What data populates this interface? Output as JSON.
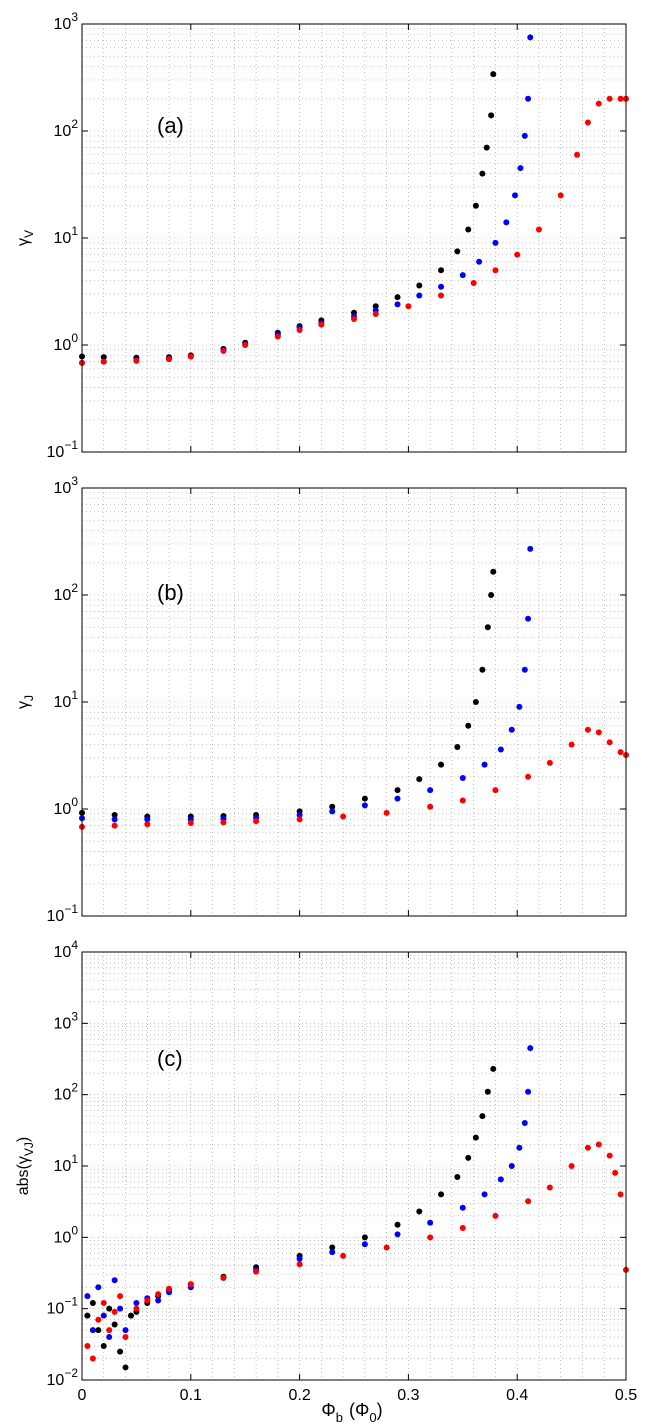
{
  "figure": {
    "xlabel_main": "Φ",
    "xlabel_sub": "b",
    "xlabel_paren": "(Φ",
    "xlabel_paren_sub": "0",
    "xlabel_close": ")"
  },
  "chart_data": [
    {
      "type": "scatter",
      "panel_label": "(a)",
      "ylabel": "γ",
      "ylabel_sub": "V",
      "y_scale": "log",
      "xlim": [
        0,
        0.5
      ],
      "ylim": [
        0.1,
        1000
      ],
      "x_ticks": [
        "0",
        "0.1",
        "0.2",
        "0.3",
        "0.4",
        "0.5"
      ],
      "x_ticklabels_visible": false,
      "y_ticks": [
        {
          "base": "10",
          "exp": "−1"
        },
        {
          "base": "10",
          "exp": "0"
        },
        {
          "base": "10",
          "exp": "1"
        },
        {
          "base": "10",
          "exp": "2"
        },
        {
          "base": "10",
          "exp": "3"
        }
      ],
      "grid": true,
      "series": [
        {
          "color": "#000000",
          "points": [
            [
              0,
              0.78
            ],
            [
              0.02,
              0.77
            ],
            [
              0.05,
              0.76
            ],
            [
              0.08,
              0.77
            ],
            [
              0.1,
              0.8
            ],
            [
              0.13,
              0.92
            ],
            [
              0.15,
              1.05
            ],
            [
              0.18,
              1.3
            ],
            [
              0.2,
              1.5
            ],
            [
              0.22,
              1.7
            ],
            [
              0.25,
              2.0
            ],
            [
              0.27,
              2.3
            ],
            [
              0.29,
              2.8
            ],
            [
              0.31,
              3.6
            ],
            [
              0.33,
              5.0
            ],
            [
              0.345,
              7.5
            ],
            [
              0.355,
              12
            ],
            [
              0.362,
              20
            ],
            [
              0.368,
              40
            ],
            [
              0.372,
              70
            ],
            [
              0.376,
              140
            ],
            [
              0.378,
              340
            ]
          ]
        },
        {
          "color": "#0000ff",
          "points": [
            [
              0,
              0.68
            ],
            [
              0.02,
              0.7
            ],
            [
              0.05,
              0.72
            ],
            [
              0.08,
              0.74
            ],
            [
              0.1,
              0.78
            ],
            [
              0.13,
              0.9
            ],
            [
              0.15,
              1.02
            ],
            [
              0.18,
              1.25
            ],
            [
              0.2,
              1.45
            ],
            [
              0.22,
              1.6
            ],
            [
              0.25,
              1.85
            ],
            [
              0.27,
              2.1
            ],
            [
              0.29,
              2.4
            ],
            [
              0.31,
              2.9
            ],
            [
              0.33,
              3.5
            ],
            [
              0.35,
              4.5
            ],
            [
              0.365,
              6
            ],
            [
              0.38,
              9
            ],
            [
              0.39,
              14
            ],
            [
              0.398,
              25
            ],
            [
              0.403,
              45
            ],
            [
              0.407,
              90
            ],
            [
              0.41,
              200
            ],
            [
              0.412,
              750
            ]
          ]
        },
        {
          "color": "#ff0000",
          "points": [
            [
              0,
              0.68
            ],
            [
              0.02,
              0.7
            ],
            [
              0.05,
              0.71
            ],
            [
              0.08,
              0.74
            ],
            [
              0.1,
              0.78
            ],
            [
              0.13,
              0.88
            ],
            [
              0.15,
              1.0
            ],
            [
              0.18,
              1.2
            ],
            [
              0.2,
              1.38
            ],
            [
              0.22,
              1.55
            ],
            [
              0.25,
              1.75
            ],
            [
              0.27,
              1.95
            ],
            [
              0.3,
              2.3
            ],
            [
              0.33,
              2.9
            ],
            [
              0.36,
              3.8
            ],
            [
              0.38,
              5.0
            ],
            [
              0.4,
              7.0
            ],
            [
              0.42,
              12
            ],
            [
              0.44,
              25
            ],
            [
              0.455,
              60
            ],
            [
              0.465,
              120
            ],
            [
              0.475,
              180
            ],
            [
              0.485,
              200
            ],
            [
              0.495,
              200
            ],
            [
              0.5,
              200
            ]
          ]
        }
      ]
    },
    {
      "type": "scatter",
      "panel_label": "(b)",
      "ylabel": "γ",
      "ylabel_sub": "J",
      "y_scale": "log",
      "xlim": [
        0,
        0.5
      ],
      "ylim": [
        0.1,
        1000
      ],
      "x_ticks": [
        "0",
        "0.1",
        "0.2",
        "0.3",
        "0.4",
        "0.5"
      ],
      "x_ticklabels_visible": false,
      "y_ticks": [
        {
          "base": "10",
          "exp": "−1"
        },
        {
          "base": "10",
          "exp": "0"
        },
        {
          "base": "10",
          "exp": "1"
        },
        {
          "base": "10",
          "exp": "2"
        },
        {
          "base": "10",
          "exp": "3"
        }
      ],
      "grid": true,
      "series": [
        {
          "color": "#000000",
          "points": [
            [
              0,
              0.92
            ],
            [
              0.03,
              0.88
            ],
            [
              0.06,
              0.85
            ],
            [
              0.1,
              0.85
            ],
            [
              0.13,
              0.86
            ],
            [
              0.16,
              0.88
            ],
            [
              0.2,
              0.95
            ],
            [
              0.23,
              1.05
            ],
            [
              0.26,
              1.25
            ],
            [
              0.29,
              1.5
            ],
            [
              0.31,
              1.9
            ],
            [
              0.33,
              2.6
            ],
            [
              0.345,
              3.8
            ],
            [
              0.355,
              6
            ],
            [
              0.362,
              10
            ],
            [
              0.368,
              20
            ],
            [
              0.373,
              50
            ],
            [
              0.376,
              100
            ],
            [
              0.378,
              165
            ]
          ]
        },
        {
          "color": "#0000ff",
          "points": [
            [
              0,
              0.82
            ],
            [
              0.03,
              0.8
            ],
            [
              0.06,
              0.8
            ],
            [
              0.1,
              0.8
            ],
            [
              0.13,
              0.81
            ],
            [
              0.16,
              0.83
            ],
            [
              0.2,
              0.88
            ],
            [
              0.23,
              0.95
            ],
            [
              0.26,
              1.08
            ],
            [
              0.29,
              1.25
            ],
            [
              0.32,
              1.5
            ],
            [
              0.35,
              1.95
            ],
            [
              0.37,
              2.6
            ],
            [
              0.385,
              3.6
            ],
            [
              0.395,
              5.5
            ],
            [
              0.402,
              9
            ],
            [
              0.407,
              20
            ],
            [
              0.41,
              60
            ],
            [
              0.412,
              270
            ]
          ]
        },
        {
          "color": "#ff0000",
          "points": [
            [
              0,
              0.68
            ],
            [
              0.03,
              0.7
            ],
            [
              0.06,
              0.72
            ],
            [
              0.1,
              0.74
            ],
            [
              0.13,
              0.75
            ],
            [
              0.16,
              0.77
            ],
            [
              0.2,
              0.8
            ],
            [
              0.24,
              0.85
            ],
            [
              0.28,
              0.92
            ],
            [
              0.32,
              1.05
            ],
            [
              0.35,
              1.2
            ],
            [
              0.38,
              1.5
            ],
            [
              0.41,
              2.0
            ],
            [
              0.43,
              2.7
            ],
            [
              0.45,
              4.0
            ],
            [
              0.465,
              5.5
            ],
            [
              0.475,
              5.2
            ],
            [
              0.485,
              4.2
            ],
            [
              0.495,
              3.4
            ],
            [
              0.5,
              3.2
            ]
          ]
        }
      ]
    },
    {
      "type": "scatter",
      "panel_label": "(c)",
      "ylabel": "abs(γ",
      "ylabel_sub": "VJ",
      "ylabel_close": ")",
      "y_scale": "log",
      "xlim": [
        0,
        0.5
      ],
      "ylim": [
        0.01,
        10000
      ],
      "x_ticks": [
        "0",
        "0.1",
        "0.2",
        "0.3",
        "0.4",
        "0.5"
      ],
      "x_ticklabels_visible": true,
      "y_ticks": [
        {
          "base": "10",
          "exp": "−2"
        },
        {
          "base": "10",
          "exp": "−1"
        },
        {
          "base": "10",
          "exp": "0"
        },
        {
          "base": "10",
          "exp": "1"
        },
        {
          "base": "10",
          "exp": "2"
        },
        {
          "base": "10",
          "exp": "3"
        },
        {
          "base": "10",
          "exp": "4"
        }
      ],
      "grid": true,
      "series": [
        {
          "color": "#000000",
          "points": [
            [
              0.005,
              0.08
            ],
            [
              0.01,
              0.12
            ],
            [
              0.015,
              0.05
            ],
            [
              0.02,
              0.03
            ],
            [
              0.025,
              0.1
            ],
            [
              0.03,
              0.06
            ],
            [
              0.035,
              0.025
            ],
            [
              0.04,
              0.015
            ],
            [
              0.045,
              0.08
            ],
            [
              0.05,
              0.09
            ],
            [
              0.06,
              0.12
            ],
            [
              0.07,
              0.15
            ],
            [
              0.08,
              0.18
            ],
            [
              0.1,
              0.22
            ],
            [
              0.13,
              0.28
            ],
            [
              0.16,
              0.38
            ],
            [
              0.2,
              0.55
            ],
            [
              0.23,
              0.72
            ],
            [
              0.26,
              1.0
            ],
            [
              0.29,
              1.5
            ],
            [
              0.31,
              2.3
            ],
            [
              0.33,
              4
            ],
            [
              0.345,
              7
            ],
            [
              0.355,
              13
            ],
            [
              0.362,
              25
            ],
            [
              0.368,
              50
            ],
            [
              0.373,
              110
            ],
            [
              0.378,
              230
            ]
          ]
        },
        {
          "color": "#0000ff",
          "points": [
            [
              0.005,
              0.15
            ],
            [
              0.01,
              0.05
            ],
            [
              0.015,
              0.2
            ],
            [
              0.02,
              0.08
            ],
            [
              0.025,
              0.04
            ],
            [
              0.03,
              0.25
            ],
            [
              0.035,
              0.1
            ],
            [
              0.04,
              0.05
            ],
            [
              0.05,
              0.12
            ],
            [
              0.06,
              0.14
            ],
            [
              0.07,
              0.13
            ],
            [
              0.08,
              0.17
            ],
            [
              0.1,
              0.2
            ],
            [
              0.13,
              0.27
            ],
            [
              0.16,
              0.35
            ],
            [
              0.2,
              0.5
            ],
            [
              0.23,
              0.62
            ],
            [
              0.26,
              0.8
            ],
            [
              0.29,
              1.1
            ],
            [
              0.32,
              1.6
            ],
            [
              0.35,
              2.6
            ],
            [
              0.37,
              4
            ],
            [
              0.385,
              6.5
            ],
            [
              0.395,
              10
            ],
            [
              0.402,
              18
            ],
            [
              0.407,
              40
            ],
            [
              0.41,
              110
            ],
            [
              0.412,
              450
            ]
          ]
        },
        {
          "color": "#ff0000",
          "points": [
            [
              0.005,
              0.03
            ],
            [
              0.01,
              0.02
            ],
            [
              0.015,
              0.07
            ],
            [
              0.02,
              0.12
            ],
            [
              0.025,
              0.05
            ],
            [
              0.03,
              0.09
            ],
            [
              0.035,
              0.15
            ],
            [
              0.04,
              0.04
            ],
            [
              0.05,
              0.1
            ],
            [
              0.06,
              0.13
            ],
            [
              0.07,
              0.16
            ],
            [
              0.08,
              0.19
            ],
            [
              0.1,
              0.22
            ],
            [
              0.13,
              0.27
            ],
            [
              0.16,
              0.33
            ],
            [
              0.2,
              0.42
            ],
            [
              0.24,
              0.55
            ],
            [
              0.28,
              0.72
            ],
            [
              0.32,
              1.0
            ],
            [
              0.35,
              1.35
            ],
            [
              0.38,
              2.0
            ],
            [
              0.41,
              3.2
            ],
            [
              0.43,
              5
            ],
            [
              0.45,
              10
            ],
            [
              0.465,
              18
            ],
            [
              0.475,
              20
            ],
            [
              0.485,
              14
            ],
            [
              0.49,
              8
            ],
            [
              0.495,
              4
            ],
            [
              0.5,
              0.35
            ]
          ]
        }
      ]
    }
  ]
}
